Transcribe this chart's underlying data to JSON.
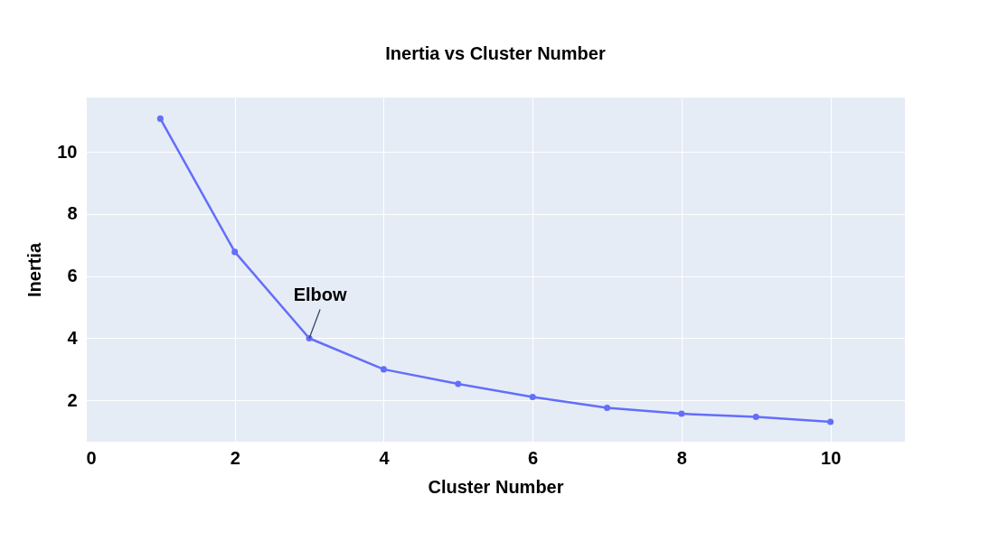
{
  "chart_data": {
    "type": "line",
    "title": "Inertia vs Cluster Number",
    "xlabel": "Cluster Number",
    "ylabel": "Inertia",
    "x": [
      1,
      2,
      3,
      4,
      5,
      6,
      7,
      8,
      9,
      10
    ],
    "series": [
      {
        "color": "#636efa",
        "values": [
          11.07,
          6.78,
          4.0,
          3.0,
          2.53,
          2.11,
          1.76,
          1.57,
          1.47,
          1.31
        ]
      }
    ],
    "xlim": [
      0,
      11
    ],
    "xticks": [
      0,
      2,
      4,
      6,
      8,
      10
    ],
    "ylim": [
      0.67,
      11.75
    ],
    "yticks": [
      2,
      4,
      6,
      8,
      10
    ],
    "annotations": [
      {
        "text": "Elbow",
        "x": 3,
        "y": 4.0
      }
    ],
    "grid": true,
    "marker": "circle",
    "line_style": "solid"
  }
}
